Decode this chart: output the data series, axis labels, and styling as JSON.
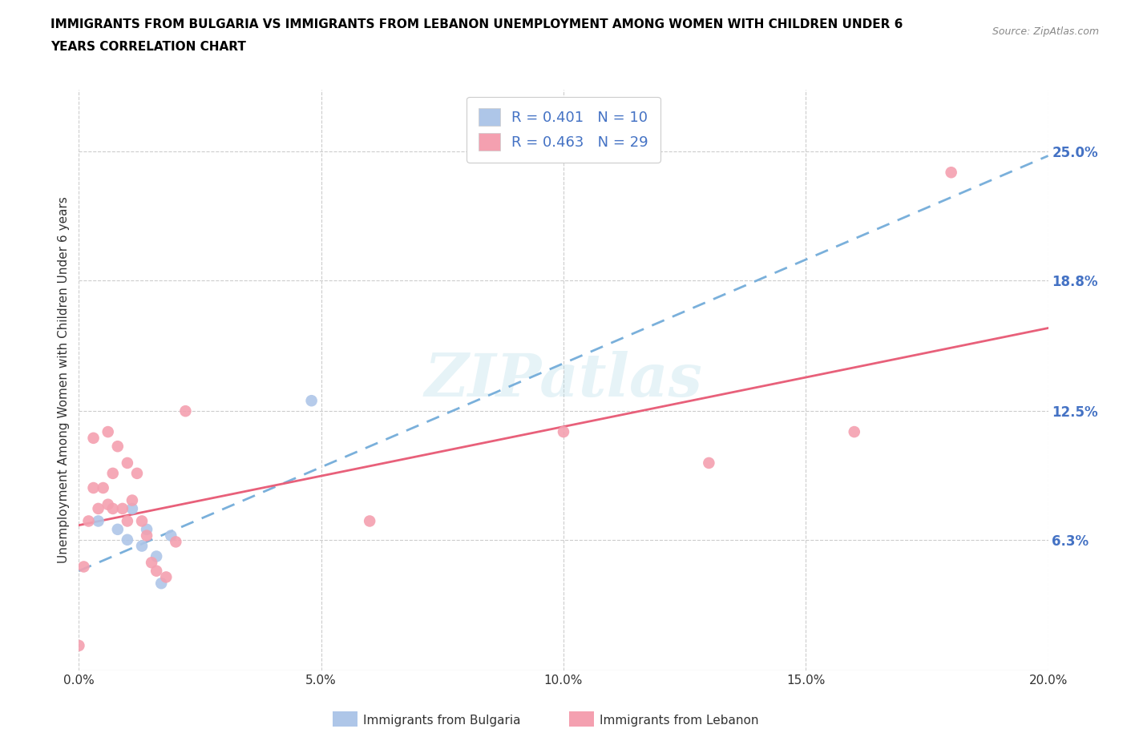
{
  "title_line1": "IMMIGRANTS FROM BULGARIA VS IMMIGRANTS FROM LEBANON UNEMPLOYMENT AMONG WOMEN WITH CHILDREN UNDER 6",
  "title_line2": "YEARS CORRELATION CHART",
  "source": "Source: ZipAtlas.com",
  "ylabel": "Unemployment Among Women with Children Under 6 years",
  "xlim": [
    0.0,
    0.2
  ],
  "ylim": [
    0.0,
    0.28
  ],
  "ytick_labels": [
    "6.3%",
    "12.5%",
    "18.8%",
    "25.0%"
  ],
  "ytick_values": [
    0.063,
    0.125,
    0.188,
    0.25
  ],
  "xtick_labels": [
    "0.0%",
    "",
    "5.0%",
    "",
    "10.0%",
    "",
    "15.0%",
    "",
    "20.0%"
  ],
  "xtick_values": [
    0.0,
    0.025,
    0.05,
    0.075,
    0.1,
    0.125,
    0.15,
    0.175,
    0.2
  ],
  "xtick_display": [
    0.0,
    0.05,
    0.1,
    0.15,
    0.2
  ],
  "xtick_display_labels": [
    "0.0%",
    "5.0%",
    "10.0%",
    "15.0%",
    "20.0%"
  ],
  "grid_color": "#cccccc",
  "watermark": "ZIPatlas",
  "bulgaria_color": "#aec6e8",
  "lebanon_color": "#f4a0b0",
  "bulgaria_line_color": "#7ab0db",
  "lebanon_line_color": "#e8607a",
  "bulgaria_R": 0.401,
  "bulgaria_N": 10,
  "lebanon_R": 0.463,
  "lebanon_N": 29,
  "legend_R_color": "#4472c4",
  "legend_label_bulgaria": "Immigrants from Bulgaria",
  "legend_label_lebanon": "Immigrants from Lebanon",
  "bulgaria_x": [
    0.004,
    0.008,
    0.01,
    0.011,
    0.013,
    0.014,
    0.016,
    0.017,
    0.019,
    0.048
  ],
  "bulgaria_y": [
    0.072,
    0.068,
    0.063,
    0.078,
    0.06,
    0.068,
    0.055,
    0.042,
    0.065,
    0.13
  ],
  "lebanon_x": [
    0.0,
    0.001,
    0.002,
    0.003,
    0.003,
    0.004,
    0.005,
    0.006,
    0.006,
    0.007,
    0.007,
    0.008,
    0.009,
    0.01,
    0.01,
    0.011,
    0.012,
    0.013,
    0.014,
    0.015,
    0.016,
    0.018,
    0.02,
    0.022,
    0.06,
    0.1,
    0.13,
    0.16,
    0.18
  ],
  "lebanon_y": [
    0.012,
    0.05,
    0.072,
    0.088,
    0.112,
    0.078,
    0.088,
    0.08,
    0.115,
    0.078,
    0.095,
    0.108,
    0.078,
    0.072,
    0.1,
    0.082,
    0.095,
    0.072,
    0.065,
    0.052,
    0.048,
    0.045,
    0.062,
    0.125,
    0.072,
    0.115,
    0.1,
    0.115,
    0.24
  ],
  "bulgaria_line_x": [
    0.0,
    0.2
  ],
  "bulgaria_line_y": [
    0.048,
    0.248
  ],
  "lebanon_line_x": [
    0.0,
    0.2
  ],
  "lebanon_line_y": [
    0.07,
    0.165
  ]
}
